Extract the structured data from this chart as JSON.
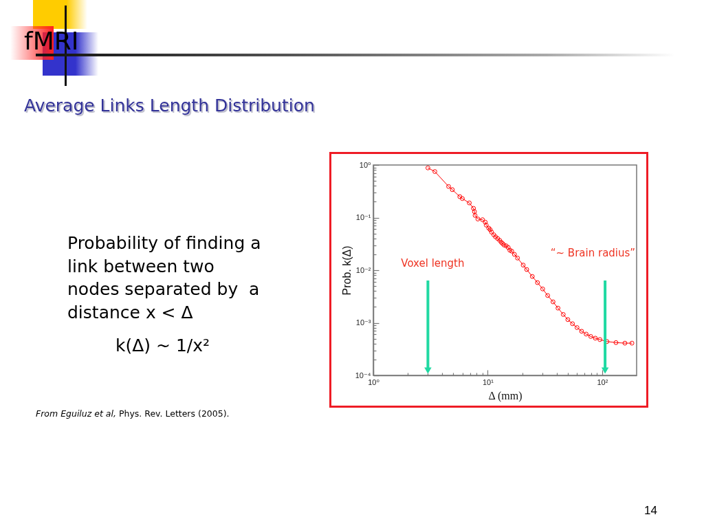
{
  "chart_data": {
    "type": "line",
    "title": "fMRI",
    "subtitle": "Average Links Length Distribution",
    "xlabel": "Δ (mm)",
    "ylabel": "Prob. k(Δ)",
    "x": [
      3.0,
      3.45,
      4.55,
      4.9,
      5.7,
      6.0,
      6.9,
      7.5,
      7.65,
      7.75,
      8.2,
      9.0,
      9.5,
      9.7,
      10.2,
      10.5,
      10.8,
      11.3,
      11.7,
      12.2,
      12.7,
      13.1,
      13.5,
      13.9,
      14.5,
      15.1,
      15.6,
      16.2,
      17.1,
      18.2,
      20.4,
      21.9,
      24.5,
      27.2,
      30.2,
      33.4,
      37.2,
      41.1,
      45.7,
      50.1,
      55,
      60.3,
      66.1,
      72.4,
      79.4,
      87.1,
      95.5,
      110,
      132,
      158,
      182
    ],
    "series": [
      {
        "color": "#ff0000",
        "values": [
          0.88,
          0.75,
          0.39,
          0.34,
          0.25,
          0.23,
          0.19,
          0.15,
          0.13,
          0.11,
          0.094,
          0.091,
          0.082,
          0.072,
          0.063,
          0.059,
          0.053,
          0.047,
          0.043,
          0.04,
          0.037,
          0.034,
          0.032,
          0.03,
          0.029,
          0.027,
          0.024,
          0.023,
          0.02,
          0.017,
          0.0125,
          0.0103,
          0.0076,
          0.0058,
          0.0044,
          0.0033,
          0.0025,
          0.0019,
          0.00144,
          0.00115,
          0.00096,
          0.00081,
          0.00069,
          0.00061,
          0.00055,
          0.00051,
          0.00048,
          0.00044,
          0.00042,
          0.00041,
          0.00041
        ]
      }
    ],
    "log": "xy",
    "xlim": [
      1,
      200
    ],
    "ylim": [
      0.0001,
      1
    ],
    "xticks": [
      {
        "value": 1,
        "label": "10⁰"
      },
      {
        "value": 2,
        "label": null
      },
      {
        "value": 3,
        "label": null
      },
      {
        "value": 4,
        "label": null
      },
      {
        "value": 5,
        "label": null
      },
      {
        "value": 6,
        "label": null
      },
      {
        "value": 7,
        "label": null
      },
      {
        "value": 8,
        "label": null
      },
      {
        "value": 9,
        "label": null
      },
      {
        "value": 10,
        "label": "10¹"
      },
      {
        "value": 20,
        "label": null
      },
      {
        "value": 30,
        "label": null
      },
      {
        "value": 40,
        "label": null
      },
      {
        "value": 50,
        "label": null
      },
      {
        "value": 60,
        "label": null
      },
      {
        "value": 70,
        "label": null
      },
      {
        "value": 80,
        "label": null
      },
      {
        "value": 90,
        "label": null
      },
      {
        "value": 100,
        "label": "10²"
      }
    ],
    "yticks": [
      {
        "value": 0.0001,
        "label": "10⁻⁴"
      },
      {
        "value": 0.0002,
        "label": null
      },
      {
        "value": 0.0003,
        "label": null
      },
      {
        "value": 0.0004,
        "label": null
      },
      {
        "value": 0.0005,
        "label": null
      },
      {
        "value": 0.0006,
        "label": null
      },
      {
        "value": 0.0007,
        "label": null
      },
      {
        "value": 0.0008,
        "label": null
      },
      {
        "value": 0.0009,
        "label": null
      },
      {
        "value": 0.001,
        "label": "10⁻³"
      },
      {
        "value": 0.002,
        "label": null
      },
      {
        "value": 0.003,
        "label": null
      },
      {
        "value": 0.004,
        "label": null
      },
      {
        "value": 0.005,
        "label": null
      },
      {
        "value": 0.006,
        "label": null
      },
      {
        "value": 0.007,
        "label": null
      },
      {
        "value": 0.008,
        "label": null
      },
      {
        "value": 0.009,
        "label": null
      },
      {
        "value": 0.01,
        "label": "10⁻²"
      },
      {
        "value": 0.02,
        "label": null
      },
      {
        "value": 0.03,
        "label": null
      },
      {
        "value": 0.04,
        "label": null
      },
      {
        "value": 0.05,
        "label": null
      },
      {
        "value": 0.06,
        "label": null
      },
      {
        "value": 0.07,
        "label": null
      },
      {
        "value": 0.08,
        "label": null
      },
      {
        "value": 0.09,
        "label": null
      },
      {
        "value": 0.1,
        "label": "10⁻¹"
      },
      {
        "value": 0.2,
        "label": null
      },
      {
        "value": 0.3,
        "label": null
      },
      {
        "value": 0.4,
        "label": null
      },
      {
        "value": 0.5,
        "label": null
      },
      {
        "value": 0.6,
        "label": null
      },
      {
        "value": 0.7,
        "label": null
      },
      {
        "value": 0.8,
        "label": null
      },
      {
        "value": 0.9,
        "label": null
      },
      {
        "value": 1,
        "label": "10⁰"
      }
    ],
    "grid": false,
    "marker": "circle",
    "ref_lines": [
      {
        "axis": "x",
        "value": 3,
        "label": "Voxel length",
        "color": "#1fd9a2"
      },
      {
        "axis": "x",
        "value": 106,
        "label": "“~ Brain radius”",
        "color": "#1fd9a2"
      }
    ],
    "annotations": [
      "Probability of finding a link between two nodes separated by  a distance x < Δ",
      "k(Δ) ~ 1/x²",
      "From Eguiluz et al, Phys. Rev. Letters (2005).",
      "14"
    ]
  }
}
